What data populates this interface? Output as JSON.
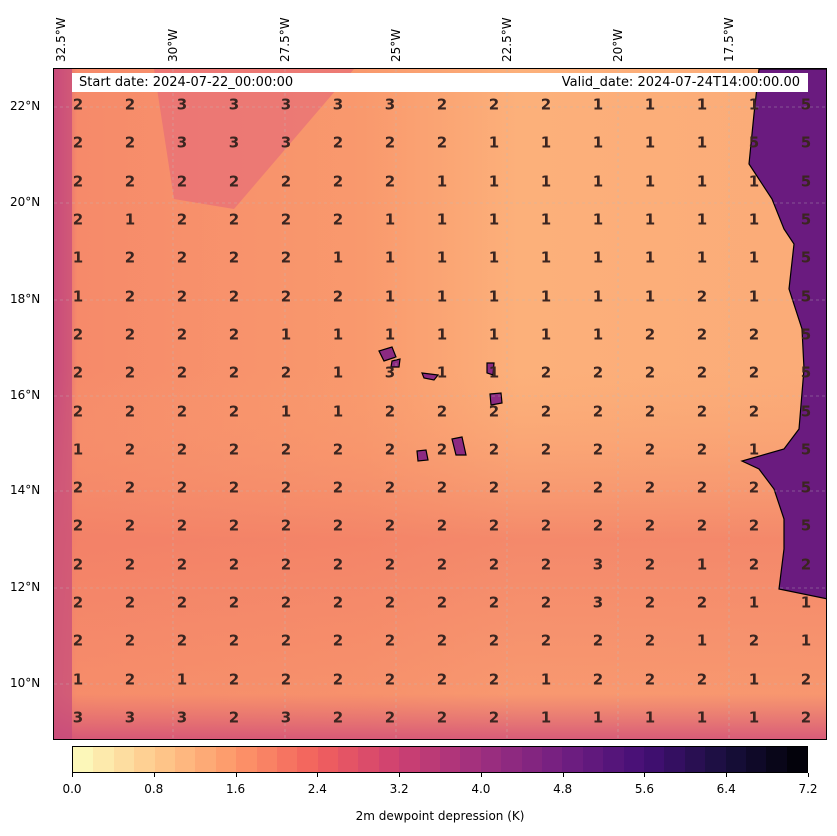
{
  "banner": {
    "start": "Start date: 2024-07-22_00:00:00",
    "valid": "Valid_date: 2024-07-24T14:00:00.00"
  },
  "lon_labels": [
    "32.5°W",
    "30°W",
    "27.5°W",
    "25°W",
    "22.5°W",
    "20°W",
    "17.5°W"
  ],
  "lat_labels": [
    "22°N",
    "20°N",
    "18°N",
    "16°N",
    "14°N",
    "12°N",
    "10°N"
  ],
  "grid_values": [
    [
      2,
      2,
      3,
      3,
      3,
      3,
      3,
      2,
      2,
      2,
      1,
      1,
      1,
      1,
      5
    ],
    [
      2,
      2,
      3,
      3,
      3,
      2,
      2,
      2,
      1,
      1,
      1,
      1,
      1,
      5,
      5
    ],
    [
      2,
      2,
      2,
      2,
      2,
      2,
      2,
      1,
      1,
      1,
      1,
      1,
      1,
      1,
      5
    ],
    [
      2,
      1,
      2,
      2,
      2,
      2,
      1,
      1,
      1,
      1,
      1,
      1,
      1,
      1,
      5
    ],
    [
      1,
      2,
      2,
      2,
      2,
      1,
      1,
      1,
      1,
      1,
      1,
      1,
      1,
      1,
      5
    ],
    [
      1,
      2,
      2,
      2,
      2,
      2,
      1,
      1,
      1,
      1,
      1,
      1,
      2,
      1,
      5
    ],
    [
      2,
      2,
      2,
      2,
      1,
      1,
      1,
      1,
      1,
      1,
      1,
      2,
      2,
      2,
      5
    ],
    [
      2,
      2,
      2,
      2,
      2,
      1,
      3,
      1,
      1,
      2,
      2,
      2,
      2,
      2,
      5
    ],
    [
      2,
      2,
      2,
      2,
      1,
      1,
      2,
      2,
      2,
      2,
      2,
      2,
      2,
      2,
      5
    ],
    [
      1,
      2,
      2,
      2,
      2,
      2,
      2,
      2,
      2,
      2,
      2,
      2,
      2,
      1,
      5
    ],
    [
      2,
      2,
      2,
      2,
      2,
      2,
      2,
      2,
      2,
      2,
      2,
      2,
      2,
      2,
      5
    ],
    [
      2,
      2,
      2,
      2,
      2,
      2,
      2,
      2,
      2,
      2,
      2,
      2,
      2,
      2,
      5
    ],
    [
      2,
      2,
      2,
      2,
      2,
      2,
      2,
      2,
      2,
      2,
      3,
      2,
      1,
      2,
      2
    ],
    [
      2,
      2,
      2,
      2,
      2,
      2,
      2,
      2,
      2,
      2,
      3,
      2,
      2,
      1,
      1
    ],
    [
      2,
      2,
      2,
      2,
      2,
      2,
      2,
      2,
      2,
      2,
      2,
      2,
      1,
      2,
      1
    ],
    [
      1,
      2,
      1,
      2,
      2,
      2,
      2,
      2,
      2,
      1,
      2,
      2,
      2,
      1,
      2
    ],
    [
      3,
      3,
      3,
      2,
      3,
      2,
      2,
      2,
      2,
      1,
      1,
      1,
      1,
      1,
      2
    ]
  ],
  "colorbar": {
    "ticks": [
      "0.0",
      "0.8",
      "1.6",
      "2.4",
      "3.2",
      "4.0",
      "4.8",
      "5.6",
      "6.4",
      "7.2"
    ],
    "label": "2m dewpoint depression (K)",
    "range": [
      0,
      7.2
    ]
  },
  "colors": {
    "sea": "#f99a6b",
    "land": "#6a1b7f"
  }
}
